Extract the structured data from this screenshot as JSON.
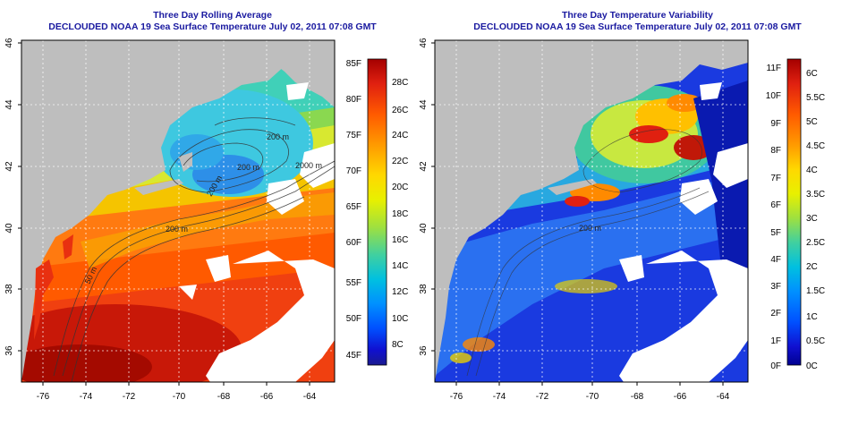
{
  "left_panel": {
    "title": "Three Day Rolling Average",
    "subtitle": "DECLOUDED NOAA 19 Sea Surface Temperature July 02, 2011 07:08 GMT",
    "x_ticks": [
      "-76",
      "-74",
      "-72",
      "-70",
      "-68",
      "-66",
      "-64"
    ],
    "y_ticks": [
      "36",
      "38",
      "40",
      "42",
      "44",
      "46"
    ],
    "colorbar": {
      "fahrenheit": [
        "85F",
        "80F",
        "75F",
        "70F",
        "65F",
        "60F",
        "55F",
        "50F",
        "45F"
      ],
      "celsius": [
        "28C",
        "26C",
        "24C",
        "22C",
        "20C",
        "18C",
        "16C",
        "14C",
        "12C",
        "10C",
        "8C"
      ],
      "colors": [
        "#a40000",
        "#e02010",
        "#ff5a00",
        "#ff9a00",
        "#ffd800",
        "#e8f000",
        "#9ee040",
        "#40d0a0",
        "#00c0e0",
        "#0090ff",
        "#0050ff",
        "#1010d0",
        "#1a1a90"
      ]
    },
    "contour_labels": [
      "200 m",
      "200 m",
      "2000 m",
      "200 m",
      "200 m",
      "50 m"
    ]
  },
  "right_panel": {
    "title": "Three Day Temperature Variability",
    "subtitle": "DECLOUDED NOAA 19 Sea Surface Temperature July 02, 2011 07:08 GMT",
    "x_ticks": [
      "-76",
      "-74",
      "-72",
      "-70",
      "-68",
      "-66",
      "-64"
    ],
    "y_ticks": [
      "36",
      "38",
      "40",
      "42",
      "44",
      "46"
    ],
    "colorbar": {
      "fahrenheit": [
        "11F",
        "10F",
        "9F",
        "8F",
        "7F",
        "6F",
        "5F",
        "4F",
        "3F",
        "2F",
        "1F",
        "0F"
      ],
      "celsius": [
        "6C",
        "5.5C",
        "5C",
        "4.5C",
        "4C",
        "3.5C",
        "3C",
        "2.5C",
        "2C",
        "1.5C",
        "1C",
        "0.5C",
        "0C"
      ],
      "colors": [
        "#a40000",
        "#e02010",
        "#ff5a00",
        "#ff9a00",
        "#ffd800",
        "#e8f000",
        "#9ee040",
        "#40d0a0",
        "#00c0e0",
        "#0090ff",
        "#0050ff",
        "#1010d0",
        "#000090"
      ]
    },
    "contour_labels": [
      "200 m"
    ]
  },
  "colors": {
    "title": "#1a1aa0",
    "land": "#bebebe",
    "cloud": "#ffffff"
  }
}
